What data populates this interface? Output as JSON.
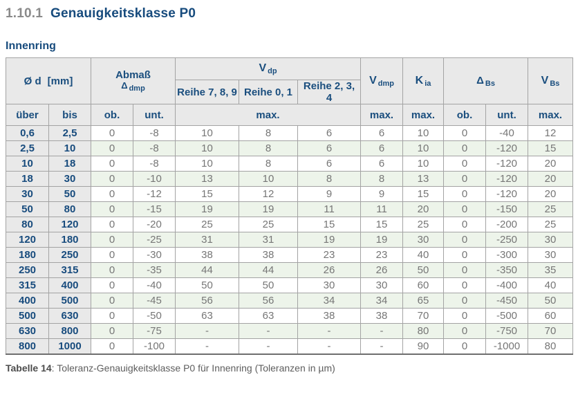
{
  "page": {
    "section_number": "1.10.1",
    "section_title": "Genauigkeitsklasse P0",
    "subtitle": "Innenring",
    "caption_label": "Tabelle 14",
    "caption_text": ": Toleranz-Genauigkeitsklasse P0 für Innenring (Toleranzen in µm)"
  },
  "colors": {
    "heading_blue": "#174b7d",
    "heading_gray": "#8a8a8a",
    "header_bg": "#e9e9e9",
    "row_green": "#edf4ea",
    "border_gray": "#a3a3a3",
    "data_text_gray": "#767676"
  },
  "table": {
    "header": {
      "od_main": "Ø d",
      "od_unit": "[mm]",
      "abmass_line1": "Abmaß",
      "abmass_sym": "Δ",
      "abmass_sub": "dmp",
      "vdp_main": "V",
      "vdp_sub": "dp",
      "reihe_789": "Reihe 7, 8, 9",
      "reihe_01": "Reihe 0, 1",
      "reihe_234": "Reihe 2, 3, 4",
      "vdmp_main": "V",
      "vdmp_sub": "dmp",
      "kia_main": "K",
      "kia_sub": "ia",
      "dbs_sym": "Δ",
      "dbs_sub": "Bs",
      "vbs_main": "V",
      "vbs_sub": "Bs",
      "sub_ueber": "über",
      "sub_bis": "bis",
      "sub_ob": "ob.",
      "sub_unt": "unt.",
      "sub_max": "max."
    },
    "rows": [
      [
        "0,6",
        "2,5",
        "0",
        "-8",
        "10",
        "8",
        "6",
        "6",
        "10",
        "0",
        "-40",
        "12"
      ],
      [
        "2,5",
        "10",
        "0",
        "-8",
        "10",
        "8",
        "6",
        "6",
        "10",
        "0",
        "-120",
        "15"
      ],
      [
        "10",
        "18",
        "0",
        "-8",
        "10",
        "8",
        "6",
        "6",
        "10",
        "0",
        "-120",
        "20"
      ],
      [
        "18",
        "30",
        "0",
        "-10",
        "13",
        "10",
        "8",
        "8",
        "13",
        "0",
        "-120",
        "20"
      ],
      [
        "30",
        "50",
        "0",
        "-12",
        "15",
        "12",
        "9",
        "9",
        "15",
        "0",
        "-120",
        "20"
      ],
      [
        "50",
        "80",
        "0",
        "-15",
        "19",
        "19",
        "11",
        "11",
        "20",
        "0",
        "-150",
        "25"
      ],
      [
        "80",
        "120",
        "0",
        "-20",
        "25",
        "25",
        "15",
        "15",
        "25",
        "0",
        "-200",
        "25"
      ],
      [
        "120",
        "180",
        "0",
        "-25",
        "31",
        "31",
        "19",
        "19",
        "30",
        "0",
        "-250",
        "30"
      ],
      [
        "180",
        "250",
        "0",
        "-30",
        "38",
        "38",
        "23",
        "23",
        "40",
        "0",
        "-300",
        "30"
      ],
      [
        "250",
        "315",
        "0",
        "-35",
        "44",
        "44",
        "26",
        "26",
        "50",
        "0",
        "-350",
        "35"
      ],
      [
        "315",
        "400",
        "0",
        "-40",
        "50",
        "50",
        "30",
        "30",
        "60",
        "0",
        "-400",
        "40"
      ],
      [
        "400",
        "500",
        "0",
        "-45",
        "56",
        "56",
        "34",
        "34",
        "65",
        "0",
        "-450",
        "50"
      ],
      [
        "500",
        "630",
        "0",
        "-50",
        "63",
        "63",
        "38",
        "38",
        "70",
        "0",
        "-500",
        "60"
      ],
      [
        "630",
        "800",
        "0",
        "-75",
        "-",
        "-",
        "-",
        "-",
        "80",
        "0",
        "-750",
        "70"
      ],
      [
        "800",
        "1000",
        "0",
        "-100",
        "-",
        "-",
        "-",
        "-",
        "90",
        "0",
        "-1000",
        "80"
      ]
    ]
  }
}
